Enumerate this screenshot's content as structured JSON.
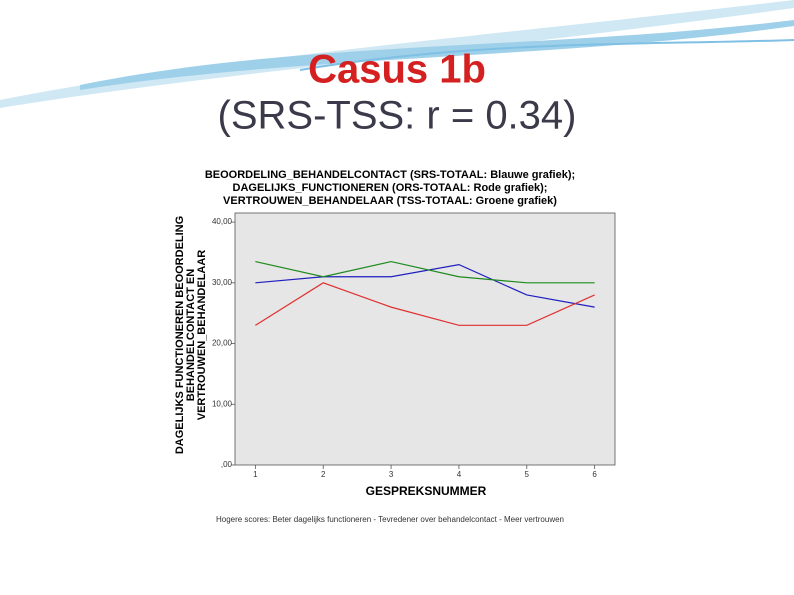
{
  "slide": {
    "title": "Casus 1b",
    "subtitle": "(SRS-TSS: r = 0.34)"
  },
  "chart_data": {
    "type": "line",
    "title_lines": [
      "BEOORDELING_BEHANDELCONTACT  (SRS-TOTAAL: Blauwe grafiek);",
      "DAGELIJKS_FUNCTIONEREN (ORS-TOTAAL: Rode grafiek);",
      "VERTROUWEN_BEHANDELAAR (TSS-TOTAAL: Groene grafiek)"
    ],
    "y_label_lines": [
      "DAGELIJKS FUNCTIONEREN BEOORDELING",
      "BEHANDELCONTACT EN",
      "VERTROUWEN_BEHANDELAAR"
    ],
    "x_label": "GESPREKSNUMMER",
    "footnote": "Hogere scores: Beter dagelijks functioneren - Tevredener over behandelcontact - Meer vertrouwen",
    "x": [
      1,
      2,
      3,
      4,
      5,
      6
    ],
    "xlim": [
      0.7,
      6.3
    ],
    "xticks": [
      1,
      2,
      3,
      4,
      5,
      6
    ],
    "ylim": [
      0,
      41.5
    ],
    "yticks": [
      {
        "value": 0,
        "label": ",00"
      },
      {
        "value": 10,
        "label": "10,00"
      },
      {
        "value": 20,
        "label": "20,00"
      },
      {
        "value": 30,
        "label": "30,00"
      },
      {
        "value": 40,
        "label": "40,00"
      }
    ],
    "series": [
      {
        "color": "#1f1fbf",
        "values": [
          30,
          31,
          31,
          33,
          28,
          26
        ]
      },
      {
        "color": "#e03030",
        "values": [
          23,
          30,
          26,
          23,
          23,
          28
        ]
      },
      {
        "color": "#1f8a1f",
        "values": [
          33.5,
          31,
          33.5,
          31,
          30,
          30
        ]
      }
    ]
  }
}
